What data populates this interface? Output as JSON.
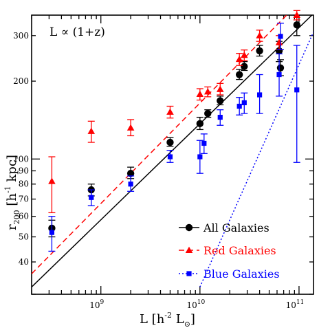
{
  "chart_data": {
    "type": "scatter",
    "annotation": "L ∝ (1+z)",
    "xlabel": {
      "main": "L [h",
      "sup": "-2",
      "rest": " L",
      "sub": "⊙",
      "close": "]"
    },
    "ylabel": {
      "main": "r",
      "sub": "200",
      "rest": " [h",
      "sup": "-1",
      "close": " kpc]"
    },
    "x_scale": "log",
    "y_scale": "log",
    "xlim": [
      200000000,
      140000000000
    ],
    "ylim": [
      30,
      360
    ],
    "x_ticks": [
      {
        "value": 1000000000,
        "base": "10",
        "exp": "9"
      },
      {
        "value": 10000000000,
        "base": "10",
        "exp": "10"
      },
      {
        "value": 100000000000,
        "base": "10",
        "exp": "11"
      }
    ],
    "y_ticks": [
      "40",
      "50",
      "60",
      "70",
      "80",
      "90",
      "100",
      "200",
      "300"
    ],
    "grid": false,
    "legend_position": "bottom-right",
    "series": [
      {
        "name": "All Galaxies",
        "color": "#000000",
        "marker": "circle",
        "line": "solid",
        "points": [
          {
            "x": 320000000,
            "y": 54,
            "lo": 50,
            "hi": 58
          },
          {
            "x": 800000000,
            "y": 76,
            "lo": 72,
            "hi": 80
          },
          {
            "x": 2000000000,
            "y": 88,
            "lo": 84,
            "hi": 93
          },
          {
            "x": 5000000000,
            "y": 116,
            "lo": 112,
            "hi": 121
          },
          {
            "x": 10000000000,
            "y": 137,
            "lo": 130,
            "hi": 145
          },
          {
            "x": 12000000000,
            "y": 150,
            "lo": 145,
            "hi": 155
          },
          {
            "x": 16000000000,
            "y": 168,
            "lo": 162,
            "hi": 175
          },
          {
            "x": 25000000000,
            "y": 212,
            "lo": 203,
            "hi": 222
          },
          {
            "x": 28000000000,
            "y": 228,
            "lo": 220,
            "hi": 238
          },
          {
            "x": 40000000000,
            "y": 262,
            "lo": 250,
            "hi": 275
          },
          {
            "x": 63000000000,
            "y": 262,
            "lo": 238,
            "hi": 285
          },
          {
            "x": 65000000000,
            "y": 225,
            "lo": 210,
            "hi": 242
          },
          {
            "x": 95000000000,
            "y": 330,
            "lo": 300,
            "hi": 360
          }
        ],
        "fit": {
          "x": [
            200000000,
            140000000000
          ],
          "y": [
            32,
            365
          ]
        }
      },
      {
        "name": "Red Galaxies",
        "color": "#ff0000",
        "marker": "triangle",
        "line": "dashed",
        "points": [
          {
            "x": 320000000,
            "y": 82,
            "lo": 62,
            "hi": 102
          },
          {
            "x": 800000000,
            "y": 128,
            "lo": 116,
            "hi": 140
          },
          {
            "x": 2000000000,
            "y": 132,
            "lo": 123,
            "hi": 142
          },
          {
            "x": 5000000000,
            "y": 152,
            "lo": 144,
            "hi": 160
          },
          {
            "x": 10000000000,
            "y": 178,
            "lo": 169,
            "hi": 187
          },
          {
            "x": 12000000000,
            "y": 182,
            "lo": 174,
            "hi": 190
          },
          {
            "x": 16000000000,
            "y": 186,
            "lo": 177,
            "hi": 196
          },
          {
            "x": 25000000000,
            "y": 243,
            "lo": 230,
            "hi": 256
          },
          {
            "x": 28000000000,
            "y": 252,
            "lo": 240,
            "hi": 264
          },
          {
            "x": 40000000000,
            "y": 300,
            "lo": 285,
            "hi": 315
          },
          {
            "x": 63000000000,
            "y": 282,
            "lo": 265,
            "hi": 300
          },
          {
            "x": 95000000000,
            "y": 360,
            "lo": 345,
            "hi": 375
          }
        ],
        "fit": {
          "x": [
            200000000,
            75000000000
          ],
          "y": [
            36,
            360
          ]
        }
      },
      {
        "name": "Blue Galaxies",
        "color": "#0000ff",
        "marker": "square",
        "line": "dotted",
        "points": [
          {
            "x": 320000000,
            "y": 52,
            "lo": 44,
            "hi": 60
          },
          {
            "x": 800000000,
            "y": 71,
            "lo": 66,
            "hi": 76
          },
          {
            "x": 2000000000,
            "y": 80,
            "lo": 75,
            "hi": 86
          },
          {
            "x": 5000000000,
            "y": 102,
            "lo": 97,
            "hi": 108
          },
          {
            "x": 10000000000,
            "y": 102,
            "lo": 88,
            "hi": 118
          },
          {
            "x": 11000000000,
            "y": 115,
            "lo": 105,
            "hi": 125
          },
          {
            "x": 16000000000,
            "y": 145,
            "lo": 135,
            "hi": 155
          },
          {
            "x": 25000000000,
            "y": 160,
            "lo": 148,
            "hi": 173
          },
          {
            "x": 28000000000,
            "y": 165,
            "lo": 150,
            "hi": 180
          },
          {
            "x": 40000000000,
            "y": 177,
            "lo": 150,
            "hi": 212
          },
          {
            "x": 63000000000,
            "y": 212,
            "lo": 175,
            "hi": 255
          },
          {
            "x": 65000000000,
            "y": 298,
            "lo": 265,
            "hi": 335
          },
          {
            "x": 95000000000,
            "y": 185,
            "lo": 97,
            "hi": 275
          }
        ],
        "fit": {
          "x": [
            10000000000,
            140000000000
          ],
          "y": [
            32,
            310
          ]
        }
      }
    ]
  }
}
